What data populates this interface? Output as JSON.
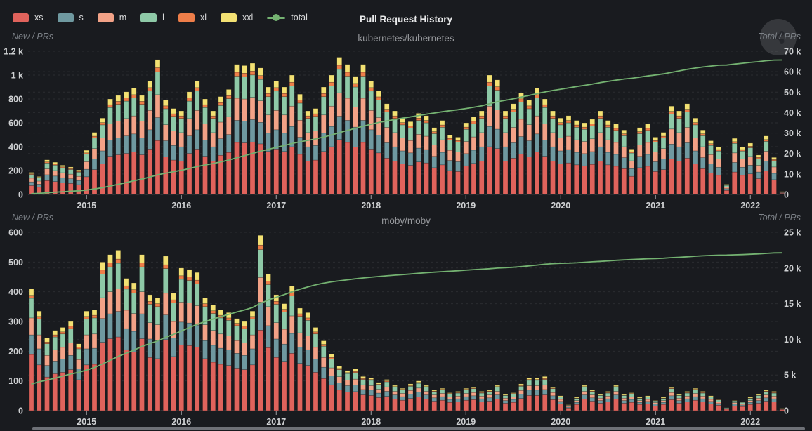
{
  "header": {
    "title": "Pull Request History"
  },
  "legend": {
    "items": [
      {
        "label": "xs",
        "color": "#e0635c",
        "type": "box"
      },
      {
        "label": "s",
        "color": "#6f99a0",
        "type": "box"
      },
      {
        "label": "m",
        "color": "#f2a287",
        "type": "box"
      },
      {
        "label": "l",
        "color": "#8ec9a7",
        "type": "box"
      },
      {
        "label": "xl",
        "color": "#ee7e49",
        "type": "box"
      },
      {
        "label": "xxl",
        "color": "#f3e173",
        "type": "box"
      },
      {
        "label": "total",
        "color": "#74b271",
        "type": "line"
      }
    ]
  },
  "share_button": {
    "icon": "share-icon"
  },
  "chart_data": [
    {
      "type": "bar",
      "stacked": true,
      "subtitle": "kubernetes/kubernetes",
      "left_axis_label": "New / PRs",
      "right_axis_label": "Total / PRs",
      "start_month": "2014-06",
      "months_per_bar": 1,
      "left_axis": {
        "max": 1200,
        "ticks": [
          {
            "v": 0,
            "label": "0"
          },
          {
            "v": 200,
            "label": "200"
          },
          {
            "v": 400,
            "label": "400"
          },
          {
            "v": 600,
            "label": "600"
          },
          {
            "v": 800,
            "label": "800"
          },
          {
            "v": 1000,
            "label": "1 k"
          },
          {
            "v": 1200,
            "label": "1.2 k"
          }
        ]
      },
      "right_axis": {
        "max": 70000,
        "ticks": [
          {
            "v": 0,
            "label": "0"
          },
          {
            "v": 10000,
            "label": "10 k"
          },
          {
            "v": 20000,
            "label": "20 k"
          },
          {
            "v": 30000,
            "label": "30 k"
          },
          {
            "v": 40000,
            "label": "40 k"
          },
          {
            "v": 50000,
            "label": "50 k"
          },
          {
            "v": 60000,
            "label": "60 k"
          },
          {
            "v": 70000,
            "label": "70 k"
          }
        ]
      },
      "x_ticks": [
        {
          "label": "2015",
          "month": 7
        },
        {
          "label": "2016",
          "month": 19
        },
        {
          "label": "2017",
          "month": 31
        },
        {
          "label": "2018",
          "month": 43
        },
        {
          "label": "2019",
          "month": 55
        },
        {
          "label": "2020",
          "month": 67
        },
        {
          "label": "2021",
          "month": 79
        },
        {
          "label": "2022",
          "month": 91
        }
      ],
      "monthly_total_new_prs": [
        185,
        150,
        290,
        270,
        245,
        230,
        205,
        370,
        520,
        640,
        800,
        830,
        860,
        890,
        830,
        950,
        1130,
        790,
        720,
        700,
        860,
        950,
        800,
        700,
        820,
        880,
        1090,
        1080,
        1100,
        1060,
        900,
        950,
        900,
        1000,
        840,
        700,
        720,
        900,
        1000,
        1150,
        1090,
        990,
        1090,
        950,
        870,
        760,
        700,
        640,
        610,
        680,
        660,
        560,
        620,
        500,
        480,
        600,
        650,
        700,
        1000,
        960,
        700,
        760,
        850,
        790,
        890,
        800,
        700,
        640,
        660,
        620,
        600,
        630,
        700,
        620,
        590,
        540,
        380,
        560,
        590,
        480,
        520,
        740,
        700,
        760,
        640,
        540,
        450,
        400,
        85,
        470,
        400,
        430,
        330,
        490,
        310,
        25
      ],
      "size_fractions": {
        "xs": 0.4,
        "s": 0.17,
        "m": 0.17,
        "l": 0.17,
        "xl": 0.03,
        "xxl": 0.06
      },
      "total_line": {
        "series": "total",
        "start_value": 200,
        "end_value": 65700,
        "rule": "cumulative sum of monthly totals, plotted on right axis"
      }
    },
    {
      "type": "bar",
      "stacked": true,
      "subtitle": "moby/moby",
      "left_axis_label": "New / PRs",
      "right_axis_label": "Total / PRs",
      "start_month": "2014-06",
      "months_per_bar": 1,
      "left_axis": {
        "max": 600,
        "ticks": [
          {
            "v": 0,
            "label": "0"
          },
          {
            "v": 100,
            "label": "100"
          },
          {
            "v": 200,
            "label": "200"
          },
          {
            "v": 300,
            "label": "300"
          },
          {
            "v": 400,
            "label": "400"
          },
          {
            "v": 500,
            "label": "500"
          },
          {
            "v": 600,
            "label": "600"
          }
        ]
      },
      "right_axis": {
        "max": 25000,
        "ticks": [
          {
            "v": 0,
            "label": "0"
          },
          {
            "v": 5000,
            "label": "5 k"
          },
          {
            "v": 10000,
            "label": "10 k"
          },
          {
            "v": 15000,
            "label": "15 k"
          },
          {
            "v": 20000,
            "label": "20 k"
          },
          {
            "v": 25000,
            "label": "25 k"
          }
        ]
      },
      "x_ticks": [
        {
          "label": "2015",
          "month": 7
        },
        {
          "label": "2016",
          "month": 19
        },
        {
          "label": "2017",
          "month": 31
        },
        {
          "label": "2018",
          "month": 43
        },
        {
          "label": "2019",
          "month": 55
        },
        {
          "label": "2020",
          "month": 67
        },
        {
          "label": "2021",
          "month": 79
        },
        {
          "label": "2022",
          "month": 91
        }
      ],
      "monthly_total_new_prs": [
        410,
        335,
        245,
        270,
        280,
        300,
        225,
        335,
        340,
        500,
        525,
        540,
        445,
        430,
        525,
        390,
        380,
        520,
        395,
        480,
        475,
        465,
        380,
        355,
        340,
        330,
        310,
        300,
        335,
        590,
        460,
        390,
        360,
        420,
        345,
        330,
        280,
        235,
        190,
        150,
        135,
        140,
        115,
        110,
        95,
        105,
        85,
        75,
        90,
        100,
        85,
        70,
        75,
        60,
        65,
        75,
        80,
        65,
        70,
        85,
        55,
        60,
        90,
        110,
        110,
        115,
        80,
        50,
        20,
        45,
        85,
        70,
        55,
        65,
        85,
        55,
        60,
        45,
        50,
        35,
        45,
        80,
        55,
        65,
        75,
        65,
        50,
        40,
        10,
        35,
        30,
        45,
        55,
        70,
        65,
        8
      ],
      "size_fractions": {
        "xs": 0.46,
        "s": 0.16,
        "m": 0.14,
        "l": 0.16,
        "xl": 0.025,
        "xxl": 0.055
      },
      "total_line": {
        "series": "total",
        "start_value": 3300,
        "end_value": 21900,
        "rule": "cumulative sum of monthly totals, plotted on right axis"
      }
    }
  ]
}
